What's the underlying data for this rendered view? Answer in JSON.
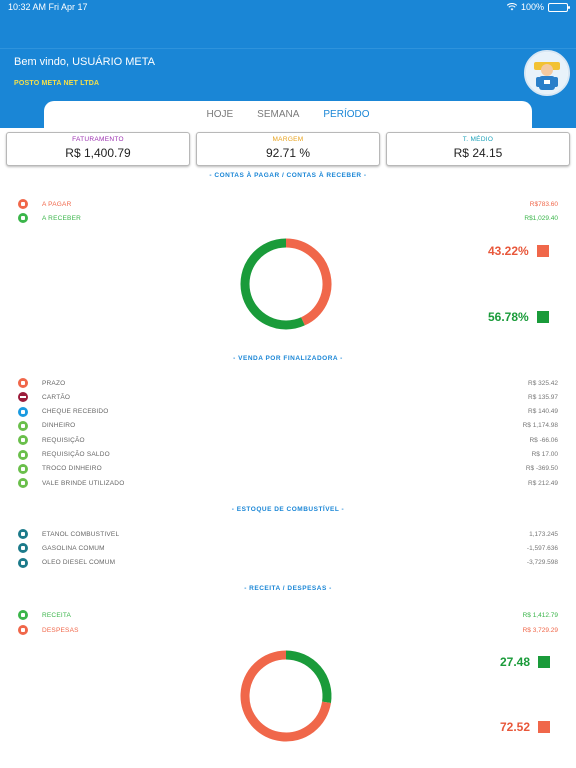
{
  "status_bar": {
    "time": "10:32 AM",
    "date": "Fri Apr 17",
    "battery": "100%"
  },
  "header": {
    "welcome": "Bem vindo, USUÁRIO META",
    "company": "POSTO META NET LTDA",
    "bg_color": "#1a86d6"
  },
  "tabs": [
    {
      "label": "HOJE",
      "active": false
    },
    {
      "label": "SEMANA",
      "active": false
    },
    {
      "label": "PERÍODO",
      "active": true
    }
  ],
  "summary": [
    {
      "label": "FATURAMENTO",
      "value": "R$ 1,400.79",
      "color": "#9b2fb0"
    },
    {
      "label": "MARGEM",
      "value": "92.71 %",
      "color": "#e8a21b"
    },
    {
      "label": "T. MÉDIO",
      "value": "R$ 24.15",
      "color": "#1aa0b8"
    }
  ],
  "contas": {
    "title": "- CONTAS À PAGAR / CONTAS À RECEBER -",
    "rows": [
      {
        "label": "A PAGAR",
        "value": "R$783.60",
        "color": "#f0674a",
        "icon": "money-bag-icon"
      },
      {
        "label": "A RECEBER",
        "value": "R$1,029.40",
        "color": "#3ab54a",
        "icon": "money-bag-icon"
      }
    ],
    "chart_data": {
      "type": "pie",
      "values": [
        43.22,
        56.78
      ],
      "labels": [
        "43.22%",
        "56.78%"
      ],
      "colors": [
        "#f0674a",
        "#1a9b3a"
      ]
    }
  },
  "vendas": {
    "title": "- VENDA POR FINALIZADORA -",
    "rows": [
      {
        "label": "PRAZO",
        "value": "R$ 325.42",
        "color": "#f0674a",
        "icon": "money-bag-icon"
      },
      {
        "label": "CARTÃO",
        "value": "R$ 135.97",
        "color": "#9b1b3a",
        "icon": "credit-card-icon"
      },
      {
        "label": "CHEQUE RECEBIDO",
        "value": "R$ 140.49",
        "color": "#1a9ae0",
        "icon": "check-icon"
      },
      {
        "label": "DINHEIRO",
        "value": "R$ 1,174.98",
        "color": "#6abf4b",
        "icon": "money-bag-icon"
      },
      {
        "label": "REQUISIÇÃO",
        "value": "R$ -66.06",
        "color": "#6abf4b",
        "icon": "money-bag-icon"
      },
      {
        "label": "REQUISIÇÃO SALDO",
        "value": "R$ 17.00",
        "color": "#6abf4b",
        "icon": "money-bag-icon"
      },
      {
        "label": "TROCO DINHEIRO",
        "value": "R$ -369.50",
        "color": "#6abf4b",
        "icon": "money-bag-icon"
      },
      {
        "label": "VALE BRINDE UTILIZADO",
        "value": "R$ 212.49",
        "color": "#6abf4b",
        "icon": "money-bag-icon"
      }
    ]
  },
  "estoque": {
    "title": "- ESTOQUE DE COMBUSTÍVEL -",
    "rows": [
      {
        "label": "ETANOL COMBUSTIVEL",
        "value": "1,173.245",
        "color": "#1c7a8a",
        "icon": "fuel-pump-icon"
      },
      {
        "label": "GASOLINA COMUM",
        "value": "-1,597.636",
        "color": "#1c7a8a",
        "icon": "fuel-pump-icon"
      },
      {
        "label": "OLEO DIESEL COMUM",
        "value": "-3,729.598",
        "color": "#1c7a8a",
        "icon": "fuel-pump-icon"
      }
    ]
  },
  "receita": {
    "title": "- RECEITA / DESPESAS -",
    "rows": [
      {
        "label": "RECEITA",
        "value": "R$ 1,412.79",
        "color": "#3ab54a",
        "icon": "money-bag-icon"
      },
      {
        "label": "DESPESAS",
        "value": "R$ 3,729.29",
        "color": "#f0674a",
        "icon": "money-bag-icon"
      }
    ],
    "chart_data": {
      "type": "pie",
      "values": [
        27.48,
        72.52
      ],
      "labels": [
        "27.48",
        "72.52"
      ],
      "colors": [
        "#1a9b3a",
        "#f0674a"
      ]
    }
  }
}
